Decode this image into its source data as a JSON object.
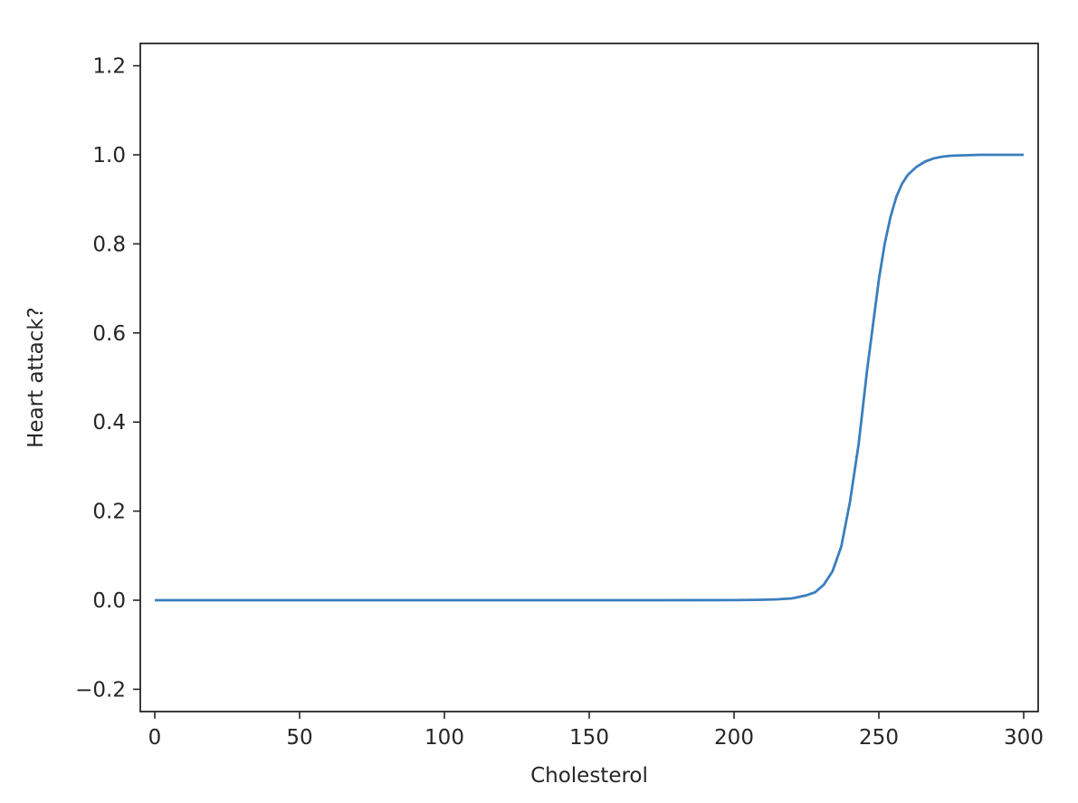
{
  "chart_data": {
    "type": "line",
    "title": "",
    "xlabel": "Cholesterol",
    "ylabel": "Heart attack?",
    "xlim": [
      -5,
      305
    ],
    "ylim": [
      -0.25,
      1.25
    ],
    "xticks": [
      0,
      50,
      100,
      150,
      200,
      250,
      300
    ],
    "yticks": [
      -0.2,
      0.0,
      0.2,
      0.4,
      0.6,
      0.8,
      1.0,
      1.2
    ],
    "xtick_labels": [
      "0",
      "50",
      "100",
      "150",
      "200",
      "250",
      "300"
    ],
    "ytick_labels": [
      "−0.2",
      "0.0",
      "0.2",
      "0.4",
      "0.6",
      "0.8",
      "1.0",
      "1.2"
    ],
    "grid": false,
    "series": [
      {
        "color": "#3a7ebf",
        "x": [
          0,
          25,
          50,
          75,
          100,
          125,
          150,
          175,
          200,
          210,
          215,
          220,
          225,
          228,
          231,
          234,
          237,
          240,
          243,
          246,
          248,
          250,
          252,
          254,
          256,
          258,
          260,
          263,
          266,
          269,
          272,
          275,
          280,
          285,
          290,
          300
        ],
        "y": [
          0,
          0,
          0,
          0,
          0,
          0,
          0,
          0,
          0.0003,
          0.001,
          0.002,
          0.004,
          0.011,
          0.018,
          0.035,
          0.065,
          0.12,
          0.22,
          0.35,
          0.52,
          0.62,
          0.72,
          0.8,
          0.86,
          0.905,
          0.935,
          0.955,
          0.973,
          0.985,
          0.992,
          0.996,
          0.998,
          0.999,
          1.0,
          1.0,
          1.0
        ]
      }
    ]
  }
}
